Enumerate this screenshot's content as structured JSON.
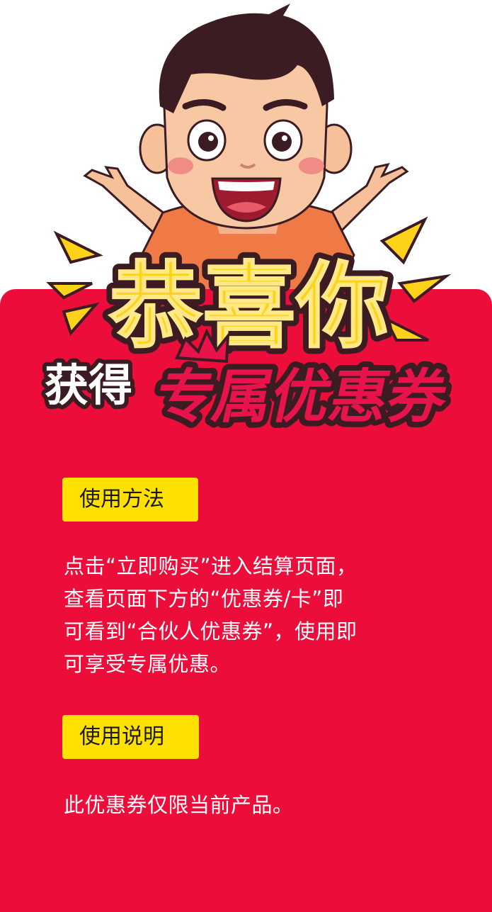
{
  "header": {
    "title_main": "恭喜你",
    "subtitle_prefix": "获得",
    "subtitle_main": "专属优惠券"
  },
  "colors": {
    "card_bg": "#ec0d3b",
    "tag_bg": "#ffe100",
    "title_yellow": "#ffd21a",
    "title_outline": "#3a1c22",
    "subtitle_pink": "#e8134a"
  },
  "usage": {
    "label": "使用方法",
    "text": "点击“立即购买”进入结算页面，\n查看页面下方的“优惠券/卡”即\n可看到“合伙人优惠券”，使用即\n可享受专属优惠。"
  },
  "description": {
    "label": "使用说明",
    "text": "此优惠券仅限当前产品。"
  }
}
